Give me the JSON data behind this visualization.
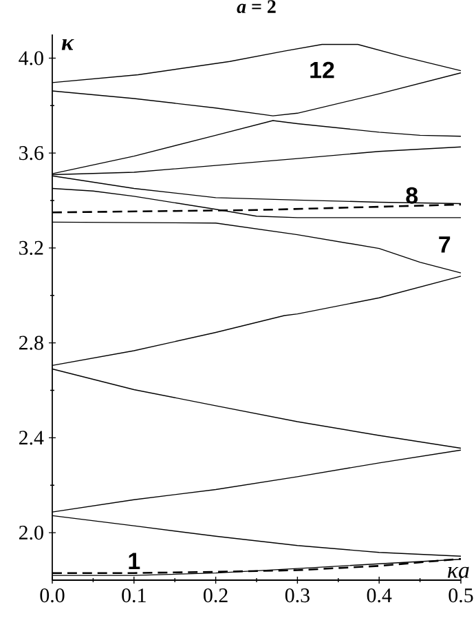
{
  "chart_data": {
    "type": "line",
    "title": "*a* = 2",
    "xlabel": "κa",
    "ylabel": "κ",
    "x": [
      0,
      0.1,
      0.2,
      0.3,
      0.4,
      0.5
    ],
    "series": [
      {
        "color": "#000000",
        "x": [
          0,
          0.105,
          0.217,
          0.284,
          0.33,
          0.374,
          0.43,
          0.5
        ],
        "values": [
          3.897,
          3.93,
          3.986,
          4.03,
          4.058,
          4.058,
          4.006,
          3.947
        ]
      },
      {
        "color": "#000000",
        "x": [
          0,
          0.1,
          0.2,
          0.27,
          0.3,
          0.4,
          0.5
        ],
        "values": [
          3.862,
          3.83,
          3.79,
          3.757,
          3.768,
          3.85,
          3.938
        ]
      },
      {
        "color": "#000000",
        "x": [
          0,
          0.1,
          0.2,
          0.27,
          0.3,
          0.4,
          0.45,
          0.5
        ],
        "values": [
          3.513,
          3.587,
          3.675,
          3.737,
          3.724,
          3.688,
          3.675,
          3.671
        ]
      },
      {
        "color": "#000000",
        "values": [
          3.509,
          3.519,
          3.548,
          3.577,
          3.607,
          3.626
        ]
      },
      {
        "color": "#000000",
        "values": [
          3.504,
          3.451,
          3.412,
          3.402,
          3.393,
          3.387
        ]
      },
      {
        "color": "#000000",
        "x": [
          0,
          0.05,
          0.1,
          0.2,
          0.25,
          0.3,
          0.5
        ],
        "values": [
          3.451,
          3.44,
          3.418,
          3.363,
          3.334,
          3.328,
          3.328
        ]
      },
      {
        "color": "#000000",
        "x": [
          0,
          0.2,
          0.3,
          0.4,
          0.45,
          0.5
        ],
        "values": [
          3.309,
          3.305,
          3.256,
          3.198,
          3.14,
          3.095
        ]
      },
      {
        "color": "#000000",
        "line_style": "dashed",
        "x": [
          0,
          0.25,
          0.5
        ],
        "values": [
          3.35,
          3.36,
          3.383
        ]
      },
      {
        "color": "#000000",
        "x": [
          0,
          0.1,
          0.2,
          0.284,
          0.3,
          0.4,
          0.5
        ],
        "values": [
          2.705,
          2.767,
          2.844,
          2.915,
          2.922,
          2.99,
          3.081
        ]
      },
      {
        "color": "#000000",
        "values": [
          2.69,
          2.603,
          2.535,
          2.468,
          2.41,
          2.356
        ]
      },
      {
        "color": "#000000",
        "values": [
          2.087,
          2.139,
          2.182,
          2.236,
          2.294,
          2.348
        ]
      },
      {
        "color": "#000000",
        "values": [
          2.072,
          2.029,
          1.985,
          1.946,
          1.917,
          1.901
        ]
      },
      {
        "color": "#000000",
        "values": [
          1.82,
          1.82,
          1.83,
          1.849,
          1.869,
          1.888
        ]
      },
      {
        "color": "#000000",
        "line_style": "dashed",
        "values": [
          1.83,
          1.83,
          1.835,
          1.842,
          1.86,
          1.89
        ]
      }
    ],
    "line_style": "solid",
    "xlim": [
      0,
      0.5
    ],
    "ylim": [
      1.8,
      4.1
    ],
    "xticks": [
      {
        "value": 0,
        "label": "0.0"
      },
      0.1,
      0.2,
      0.3,
      0.4,
      0.5
    ],
    "yticks": [
      {
        "value": 2,
        "label": "2.0"
      },
      2.4,
      2.8,
      3.2,
      3.6,
      {
        "value": 4,
        "label": "4.0"
      }
    ],
    "annotations": [
      "1",
      "7",
      "8",
      "12"
    ]
  }
}
